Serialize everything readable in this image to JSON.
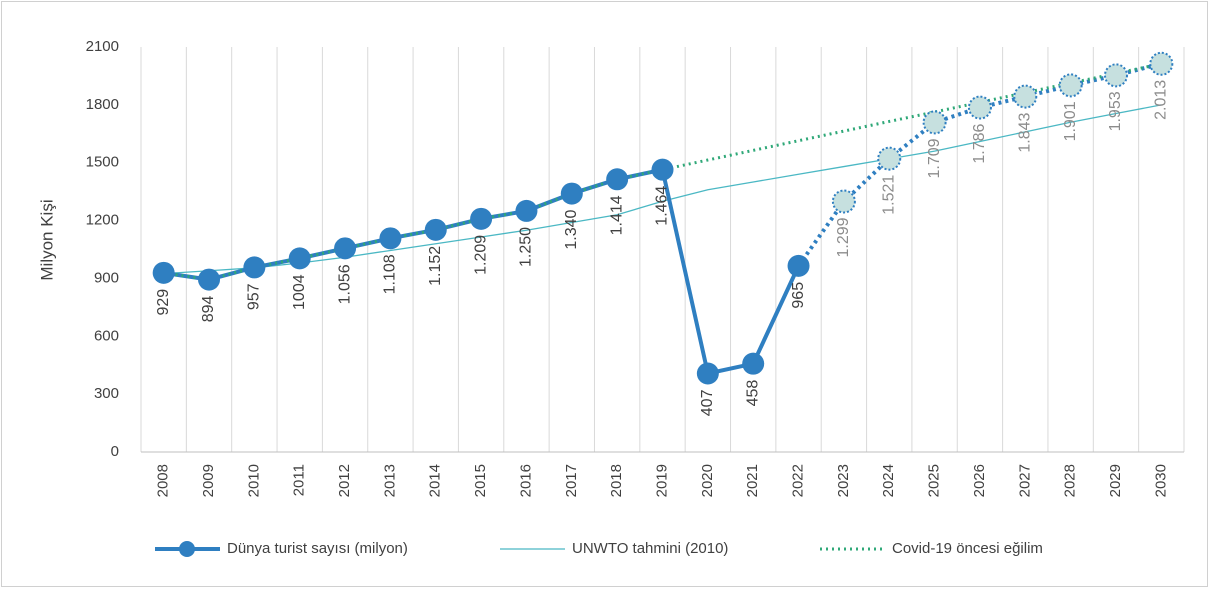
{
  "chart_data": {
    "type": "line",
    "ylabel": "Milyon Kişi",
    "categories": [
      "2008",
      "2009",
      "2010",
      "2011",
      "2012",
      "2013",
      "2014",
      "2015",
      "2016",
      "2017",
      "2018",
      "2019",
      "2020",
      "2021",
      "2022",
      "2023",
      "2024",
      "2025",
      "2026",
      "2027",
      "2028",
      "2029",
      "2030"
    ],
    "projected_from": "2022",
    "series": [
      {
        "name": "Dünya turist sayısı (milyon)",
        "color": "#2f7fc1",
        "marker_fill_projected": "#c6e0df",
        "values": [
          929,
          894,
          957,
          1004,
          1056,
          1108,
          1152,
          1209,
          1250,
          1340,
          1414,
          1464,
          407,
          458,
          965,
          1299,
          1521,
          1709,
          1786,
          1843,
          1901,
          1953,
          2013
        ],
        "value_labels": [
          "929",
          "894",
          "957",
          "1004",
          "1.056",
          "1.108",
          "1.152",
          "1.209",
          "1.250",
          "1.340",
          "1.414",
          "1.464",
          "407",
          "458",
          "965",
          "1.299",
          "1.521",
          "1.709",
          "1.786",
          "1.843",
          "1.901",
          "1.953",
          "2.013"
        ]
      },
      {
        "name": "UNWTO tahmini (2010)",
        "color": "#4bb8c4",
        "values": [
          925,
          940,
          955,
          980,
          1010,
          1045,
          1080,
          1115,
          1150,
          1190,
          1230,
          1300,
          1360,
          1400,
          1440,
          1480,
          1520,
          1560,
          1610,
          1660,
          1710,
          1755,
          1800
        ]
      },
      {
        "name": "Covid-19 öncesi eğilim",
        "color": "#2fa878",
        "dotted": true,
        "values": [
          929,
          894,
          957,
          1004,
          1056,
          1108,
          1152,
          1209,
          1250,
          1340,
          1414,
          1464,
          1514,
          1564,
          1614,
          1664,
          1714,
          1763,
          1813,
          1863,
          1913,
          1963,
          2013
        ]
      }
    ],
    "ylim": [
      0,
      2100
    ],
    "yticks": [
      0,
      300,
      600,
      900,
      1200,
      1500,
      1800,
      2100
    ],
    "grid": true
  }
}
